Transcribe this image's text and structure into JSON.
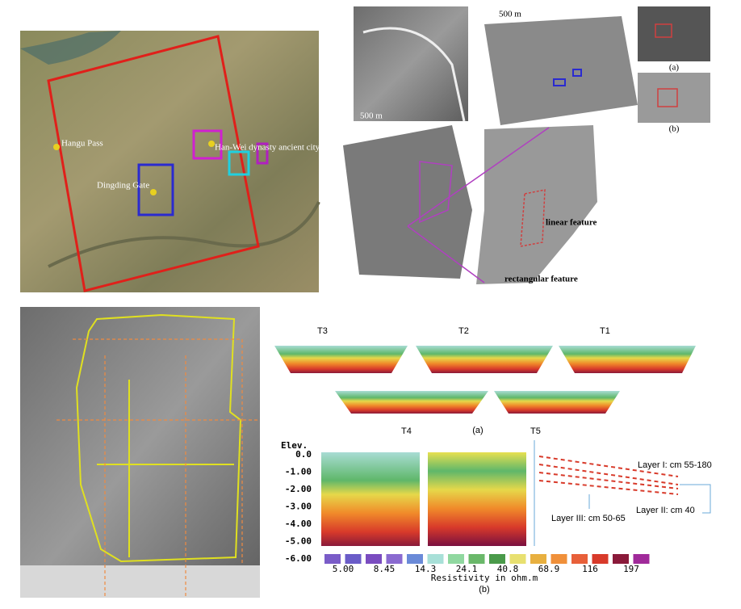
{
  "map": {
    "labels": [
      "Hangu Pass",
      "Han-Wei dynasty ancient city",
      "Dingding Gate"
    ]
  },
  "sar": {
    "scale": [
      "500 m",
      "500 m"
    ],
    "insets": [
      "(a)",
      "(b)"
    ],
    "features": [
      "linear feature",
      "rectangular feature"
    ]
  },
  "profiles": {
    "sections": [
      "T3",
      "T2",
      "T1"
    ],
    "caption_a": "(a)",
    "t4": "T4",
    "t5": "T5",
    "elev": "Elev.",
    "yticks": [
      "0.0",
      "-1.00",
      "-2.00",
      "-3.00",
      "-4.00",
      "-5.00",
      "-6.00"
    ],
    "colorbar": {
      "labels": [
        "5.00",
        "8.45",
        "14.3",
        "24.1",
        "40.8",
        "68.9",
        "116",
        "197"
      ],
      "title": "Resistivity in ohm.m"
    },
    "caption_b": "(b)",
    "layers": [
      "Layer I: cm 55-180",
      "Layer II: cm 40",
      "Layer III: cm 50-65"
    ]
  }
}
